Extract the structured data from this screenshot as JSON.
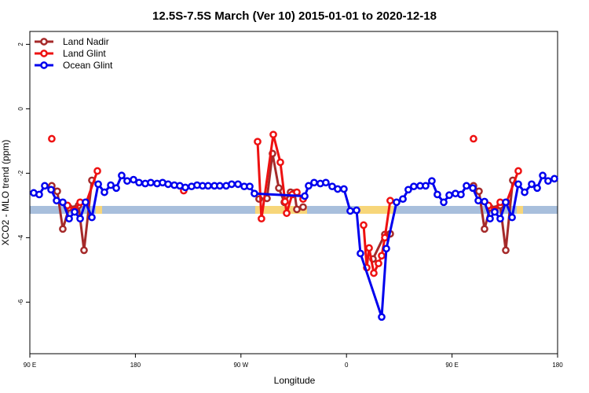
{
  "chart_data": {
    "type": "line",
    "title": "12.5S-7.5S March (Ver 10)   2015-01-01 to 2020-12-18",
    "x_label": "Longitude",
    "y_label": "XCO2 - MLO trend (ppm)",
    "xlim": [
      90,
      540
    ],
    "ylim": [
      -7.6,
      2.4
    ],
    "xticks": [
      {
        "value": 90,
        "label": "90 E"
      },
      180,
      {
        "value": 270,
        "label": "90 W"
      },
      {
        "value": 360,
        "label": "0"
      },
      {
        "value": 450,
        "label": "90 E"
      },
      {
        "value": 540,
        "label": "180"
      }
    ],
    "yticks": [
      -6,
      -4,
      -2,
      0,
      2
    ],
    "legend": "top-left",
    "series": [
      {
        "name": "Land Nadir",
        "color": "#a52a2a",
        "x": [
          108.7,
          113.4,
          118.1,
          123.5,
          131.5,
          136.2,
          142.9,
          null,
          285.5,
          292.2,
          296.9,
          302.3,
          307.0,
          312.3,
          315.7,
          317.7,
          323.0,
          null,
          382.6,
          392.7,
          397.3,
          null,
          468.3,
          473.0,
          477.7,
          482.4,
          491.1,
          495.8,
          501.8
        ],
        "values": [
          -2.39,
          -2.56,
          -3.73,
          -3.07,
          -3.0,
          -4.39,
          -2.22,
          null,
          -2.8,
          -2.78,
          -1.39,
          -2.46,
          -2.9,
          -2.59,
          -2.61,
          -3.12,
          -3.05,
          null,
          -4.66,
          -3.9,
          -3.88,
          null,
          -2.39,
          -2.56,
          -3.73,
          -3.07,
          -3.0,
          -4.39,
          -2.22
        ]
      },
      {
        "name": "Land Glint",
        "color": "#ee1111",
        "x": [
          108.7,
          null,
          122.1,
          128.2,
          132.9,
          138.2,
          147.6,
          null,
          221.2,
          null,
          284.2,
          287.5,
          297.6,
          303.6,
          307.6,
          309.0,
          313.7,
          317.7,
          323.0,
          null,
          374.6,
          377.3,
          379.3,
          383.3,
          387.3,
          390.0,
          392.7,
          397.3,
          null,
          468.3,
          null,
          481.1,
          486.4,
          491.1,
          496.5,
          506.5
        ],
        "values": [
          -0.93,
          null,
          -3.0,
          -3.15,
          -2.9,
          -2.9,
          -1.93,
          null,
          -2.54,
          null,
          -1.02,
          -3.41,
          -0.8,
          -1.66,
          -2.88,
          -3.24,
          -2.66,
          -2.59,
          -2.8,
          null,
          -3.61,
          -4.93,
          -4.32,
          -5.1,
          -4.8,
          -4.56,
          -4.0,
          -2.85,
          null,
          -0.93,
          null,
          -3.0,
          -3.15,
          -2.9,
          -2.9,
          -1.93
        ]
      },
      {
        "name": "Ocean Glint",
        "color": "#0000ee",
        "x": [
          93.3,
          98.0,
          102.7,
          108.1,
          112.8,
          118.1,
          123.5,
          128.2,
          132.9,
          137.5,
          142.9,
          148.3,
          153.6,
          159.0,
          163.7,
          168.3,
          173.0,
          178.4,
          183.1,
          188.4,
          193.1,
          198.5,
          203.2,
          207.9,
          213.2,
          217.9,
          222.6,
          227.9,
          232.6,
          237.3,
          242.0,
          247.4,
          252.0,
          257.4,
          262.1,
          267.5,
          272.8,
          277.5,
          281.5,
          324.4,
          327.7,
          332.4,
          337.7,
          342.4,
          347.8,
          352.5,
          357.8,
          363.2,
          368.6,
          371.9,
          390.0,
          394.0,
          402.7,
          408.1,
          412.7,
          417.4,
          422.8,
          427.5,
          432.8,
          437.5,
          442.9,
          447.6,
          452.9,
          457.6,
          462.3,
          467.7,
          472.4,
          477.7,
          482.4,
          486.4,
          491.1,
          495.8,
          501.2,
          506.5,
          511.9,
          517.9,
          522.6,
          527.3,
          531.9,
          537.3
        ],
        "values": [
          -2.61,
          -2.66,
          -2.39,
          -2.51,
          -2.85,
          -2.9,
          -3.41,
          -3.2,
          -3.41,
          -2.9,
          -3.37,
          -2.34,
          -2.59,
          -2.37,
          -2.46,
          -2.07,
          -2.24,
          -2.2,
          -2.29,
          -2.32,
          -2.29,
          -2.32,
          -2.29,
          -2.34,
          -2.37,
          -2.39,
          -2.44,
          -2.41,
          -2.37,
          -2.39,
          -2.39,
          -2.39,
          -2.39,
          -2.39,
          -2.34,
          -2.34,
          -2.41,
          -2.41,
          -2.63,
          -2.71,
          -2.39,
          -2.29,
          -2.32,
          -2.29,
          -2.41,
          -2.49,
          -2.49,
          -3.17,
          -3.15,
          -4.49,
          -6.46,
          -4.34,
          -2.9,
          -2.8,
          -2.51,
          -2.41,
          -2.39,
          -2.39,
          -2.24,
          -2.66,
          -2.9,
          -2.68,
          -2.63,
          -2.66,
          -2.39,
          -2.46,
          -2.85,
          -2.88,
          -3.41,
          -3.2,
          -3.41,
          -2.9,
          -3.37,
          -2.34,
          -2.59,
          -2.34,
          -2.46,
          -2.07,
          -2.24,
          -2.17
        ]
      }
    ]
  }
}
